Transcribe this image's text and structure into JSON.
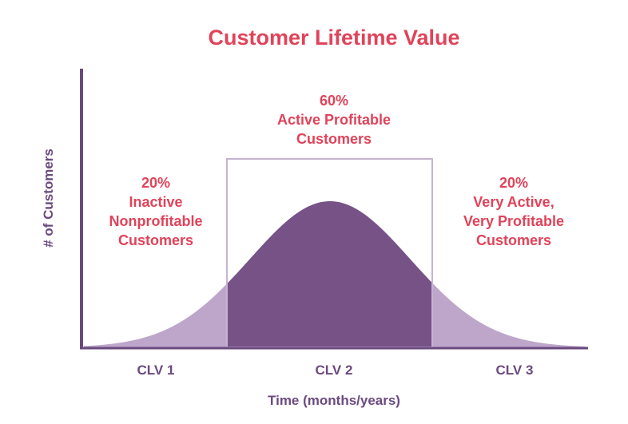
{
  "chart_data": {
    "type": "area",
    "title": "Customer Lifetime Value",
    "xlabel": "Time (months/years)",
    "ylabel": "# of Customers",
    "distribution": "bell-curve",
    "grid": false,
    "categories": [
      "CLV 1",
      "CLV 2",
      "CLV 3"
    ],
    "segments": [
      {
        "category": "CLV 1",
        "percent": "20%",
        "lines": [
          "Inactive",
          "Nonprofitable",
          "Customers"
        ]
      },
      {
        "category": "CLV 2",
        "percent": "60%",
        "lines": [
          "Active Profitable",
          "Customers"
        ]
      },
      {
        "category": "CLV 3",
        "percent": "20%",
        "lines": [
          "Very Active,",
          "Very Profitable",
          "Customers"
        ]
      }
    ],
    "colors": {
      "title": "#e0435a",
      "segment_text": "#e0435a",
      "axis_text": "#6b4a80",
      "axis_line": "#6b4a80",
      "curve_middle": "#765287",
      "curve_tails": "#bda6c9",
      "box_outline": "#c6b3d1"
    }
  }
}
